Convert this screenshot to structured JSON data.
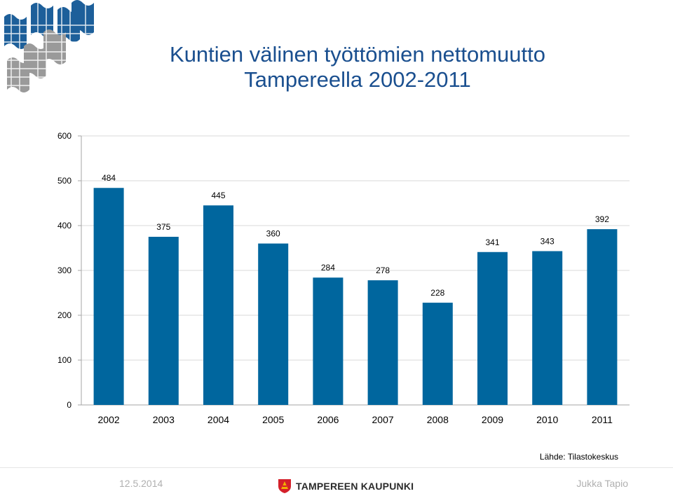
{
  "title": {
    "line1": "Kuntien välinen työttömien nettomuutto",
    "line2": "Tampereella 2002-2011"
  },
  "chart_data": {
    "type": "bar",
    "categories": [
      "2002",
      "2003",
      "2004",
      "2005",
      "2006",
      "2007",
      "2008",
      "2009",
      "2010",
      "2011"
    ],
    "values": [
      484,
      375,
      445,
      360,
      284,
      278,
      228,
      341,
      343,
      392
    ],
    "ylim": [
      0,
      600
    ],
    "yticks": [
      0,
      100,
      200,
      300,
      400,
      500,
      600
    ],
    "grid": true,
    "bar_color": "#00669e",
    "xlabel": "",
    "ylabel": ""
  },
  "source_note": "Lähde: Tilastokeskus",
  "footer": {
    "date": "12.5.2014",
    "brand": "TAMPEREEN KAUPUNKI",
    "author": "Jukka Tapio"
  },
  "colors": {
    "title": "#1a4f8f",
    "logo_blue": "#1d5f9a",
    "logo_grey": "#9a9a9a",
    "brand_red": "#d4202a",
    "brand_yellow": "#f2b000"
  }
}
